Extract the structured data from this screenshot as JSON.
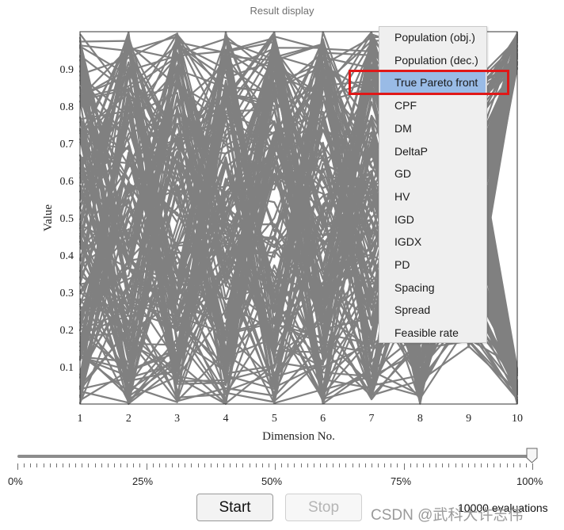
{
  "window": {
    "title": "Result display"
  },
  "chart_data": {
    "type": "parallel-coordinates",
    "xlabel": "Dimension No.",
    "ylabel": "Value",
    "x_ticks": [
      "1",
      "2",
      "3",
      "4",
      "5",
      "6",
      "7",
      "8",
      "9",
      "10"
    ],
    "y_ticks": [
      "0.1",
      "0.2",
      "0.3",
      "0.4",
      "0.5",
      "0.6",
      "0.7",
      "0.8",
      "0.9"
    ],
    "ylim": [
      0,
      1
    ],
    "series_color": "#808080"
  },
  "menu": {
    "items": [
      {
        "label": "Population (obj.)",
        "selected": false
      },
      {
        "label": "Population (dec.)",
        "selected": false
      },
      {
        "label": "True Pareto front",
        "selected": true
      },
      {
        "label": "CPF",
        "selected": false
      },
      {
        "label": "DM",
        "selected": false
      },
      {
        "label": "DeltaP",
        "selected": false
      },
      {
        "label": "GD",
        "selected": false
      },
      {
        "label": "HV",
        "selected": false
      },
      {
        "label": "IGD",
        "selected": false
      },
      {
        "label": "IGDX",
        "selected": false
      },
      {
        "label": "PD",
        "selected": false
      },
      {
        "label": "Spacing",
        "selected": false
      },
      {
        "label": "Spread",
        "selected": false
      },
      {
        "label": "Feasible rate",
        "selected": false
      }
    ],
    "highlight_color": "#e01818",
    "selected_color": "#99bbe6"
  },
  "slider": {
    "labels": [
      "0%",
      "25%",
      "50%",
      "75%",
      "100%"
    ],
    "value": 1.0
  },
  "buttons": {
    "start": "Start",
    "stop": "Stop"
  },
  "status": {
    "evaluations": "10000 evaluations"
  },
  "watermark": "CSDN @武科大许志伟"
}
